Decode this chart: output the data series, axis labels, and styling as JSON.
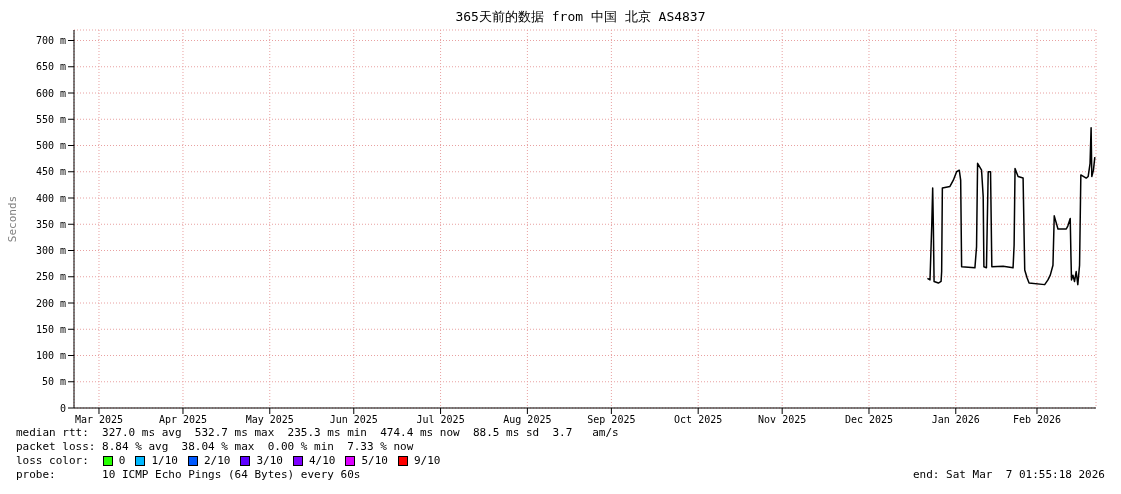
{
  "chart_data": {
    "type": "line",
    "title": "365天前的数据 from 中国 北京 AS4837",
    "ylabel": "Seconds",
    "xlim": [
      "2025-03-07T01:55",
      "2026-03-07T01:55"
    ],
    "xticks": [
      {
        "value": "2025-03-16",
        "label": "Mar 2025"
      },
      {
        "value": "2025-04-15",
        "label": "Apr 2025"
      },
      {
        "value": "2025-05-16",
        "label": "May 2025"
      },
      {
        "value": "2025-06-15",
        "label": "Jun 2025"
      },
      {
        "value": "2025-07-16",
        "label": "Jul 2025"
      },
      {
        "value": "2025-08-16",
        "label": "Aug 2025"
      },
      {
        "value": "2025-09-15",
        "label": "Sep 2025"
      },
      {
        "value": "2025-10-16",
        "label": "Oct 2025"
      },
      {
        "value": "2025-11-15",
        "label": "Nov 2025"
      },
      {
        "value": "2025-12-16",
        "label": "Dec 2025"
      },
      {
        "value": "2026-01-16",
        "label": "Jan 2026"
      },
      {
        "value": "2026-02-14",
        "label": "Feb 2026"
      }
    ],
    "ylim": [
      0,
      720
    ],
    "yticks": [
      0,
      {
        "value": 50,
        "label": "50 m"
      },
      {
        "value": 100,
        "label": "100 m"
      },
      {
        "value": 150,
        "label": "150 m"
      },
      {
        "value": 200,
        "label": "200 m"
      },
      {
        "value": 250,
        "label": "250 m"
      },
      {
        "value": 300,
        "label": "300 m"
      },
      {
        "value": 350,
        "label": "350 m"
      },
      {
        "value": 400,
        "label": "400 m"
      },
      {
        "value": 450,
        "label": "450 m"
      },
      {
        "value": 500,
        "label": "500 m"
      },
      {
        "value": 550,
        "label": "550 m"
      },
      {
        "value": 600,
        "label": "600 m"
      },
      {
        "value": 650,
        "label": "650 m"
      },
      {
        "value": 700,
        "label": "700 m"
      }
    ],
    "grid": true,
    "legend": false,
    "marker": "none",
    "line_style": "solid",
    "x": [
      "2026-01-05T21:00",
      "2026-01-06T19:00",
      "2026-01-07T10:00",
      "2026-01-07T18:00",
      "2026-01-08T00:00",
      "2026-01-08T06:00",
      "2026-01-09T19:00",
      "2026-01-10T18:00",
      "2026-01-10T23:00",
      "2026-01-11T05:00",
      "2026-01-13T22:00",
      "2026-01-15T03:00",
      "2026-01-16T07:00",
      "2026-01-17T06:00",
      "2026-01-17T18:00",
      "2026-01-18T02:00",
      "2026-01-22T20:00",
      "2026-01-23T10:00",
      "2026-01-23T19:00",
      "2026-01-25T05:00",
      "2026-01-25T19:00",
      "2026-01-26T01:00",
      "2026-01-26T23:00",
      "2026-01-27T14:00",
      "2026-01-28T10:00",
      "2026-01-28T21:00",
      "2026-02-01T22:00",
      "2026-02-05T11:00",
      "2026-02-05T20:00",
      "2026-02-06T04:00",
      "2026-02-07T06:00",
      "2026-02-09T01:00",
      "2026-02-09T15:00",
      "2026-02-10T11:00",
      "2026-02-11T04:00",
      "2026-02-16T18:00",
      "2026-02-17T22:00",
      "2026-02-18T18:00",
      "2026-02-19T17:00",
      "2026-02-20T04:00",
      "2026-02-21T12:00",
      "2026-02-24T11:00",
      "2026-02-25T01:00",
      "2026-02-25T21:00",
      "2026-02-26T03:00",
      "2026-02-26T08:00",
      "2026-02-26T20:00",
      "2026-02-27T10:00",
      "2026-02-28T00:00",
      "2026-02-28T14:00",
      "2026-03-01T05:00",
      "2026-03-01T16:00",
      "2026-03-03T14:00",
      "2026-03-04T07:00",
      "2026-03-04T23:00",
      "2026-03-05T08:00",
      "2026-03-05T14:00",
      "2026-03-06T04:00",
      "2026-03-06T16:00"
    ],
    "series": [
      {
        "color": "#000000",
        "values": [
          247,
          244,
          347,
          419,
          345,
          241,
          238,
          241,
          260,
          419,
          422,
          434,
          450,
          453,
          434,
          269,
          267,
          307,
          466,
          453,
          403,
          269,
          267,
          450,
          450,
          269,
          270,
          267,
          310,
          456,
          441,
          438,
          263,
          248,
          238,
          235,
          244,
          253,
          272,
          366,
          341,
          341,
          347,
          361,
          291,
          244,
          253,
          241,
          260,
          235,
          272,
          444,
          438,
          441,
          466,
          534,
          441,
          453,
          478
        ]
      }
    ],
    "annotations": [
      "median rtt:  327.0 ms avg  532.7 ms max  235.3 ms min  474.4 ms now  88.5 ms sd  3.7   am/s",
      "packet loss: 8.84 % avg  38.04 % max  0.00 % min  7.33 % now",
      "loss color:",
      "0",
      "1/10",
      "2/10",
      "3/10",
      "4/10",
      "5/10",
      "9/10",
      "probe:       10 ICMP Echo Pings (64 Bytes) every 60s",
      "end: Sat Mar  7 01:55:18 2026"
    ]
  }
}
